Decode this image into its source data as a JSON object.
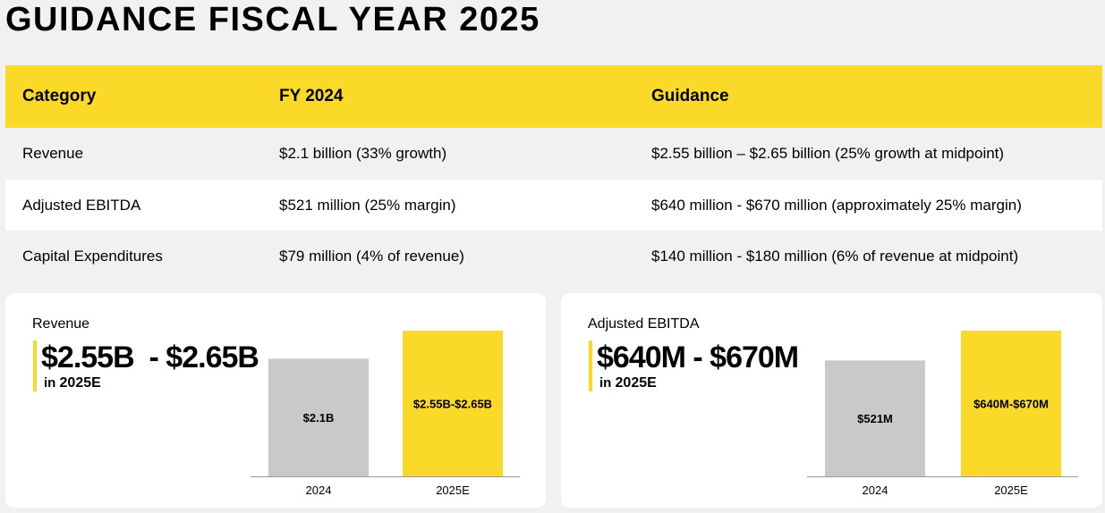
{
  "title": "GUIDANCE FISCAL YEAR 2025",
  "table": {
    "headers": [
      "Category",
      "FY 2024",
      "Guidance"
    ],
    "rows": [
      [
        "Revenue",
        "$2.1 billion (33% growth)",
        "$2.55 billion – $2.65 billion (25% growth at midpoint)"
      ],
      [
        "Adjusted EBITDA",
        "$521 million (25% margin)",
        "$640 million - $670 million (approximately 25% margin)"
      ],
      [
        "Capital Expenditures",
        "$79 million (4% of revenue)",
        "$140 million - $180 million (6% of revenue at midpoint)"
      ]
    ]
  },
  "colors": {
    "accent": "#fbd928",
    "gray_bar": "#c8c9cb",
    "background": "#f2f1f2"
  },
  "chart_data": [
    {
      "type": "bar",
      "title": "Revenue",
      "headline": "$2.55B  - $2.65B",
      "sub_prefix": "in",
      "sub_year": "2025E",
      "categories": [
        "2024",
        "2025E"
      ],
      "values": [
        2.1,
        2.6
      ],
      "data_labels": [
        "$2.1B",
        "$2.55B-$2.65B"
      ],
      "bar_colors": [
        "#c8c9cb",
        "#fbd928"
      ],
      "ylim": [
        0,
        2.6
      ],
      "unit": "$B"
    },
    {
      "type": "bar",
      "title": "Adjusted EBITDA",
      "headline": "$640M - $670M",
      "sub_prefix": "in",
      "sub_year": "2025E",
      "categories": [
        "2024",
        "2025E"
      ],
      "values": [
        521,
        655
      ],
      "data_labels": [
        "$521M",
        "$640M-$670M"
      ],
      "bar_colors": [
        "#c8c9cb",
        "#fbd928"
      ],
      "ylim": [
        0,
        655
      ],
      "unit": "$M"
    }
  ]
}
